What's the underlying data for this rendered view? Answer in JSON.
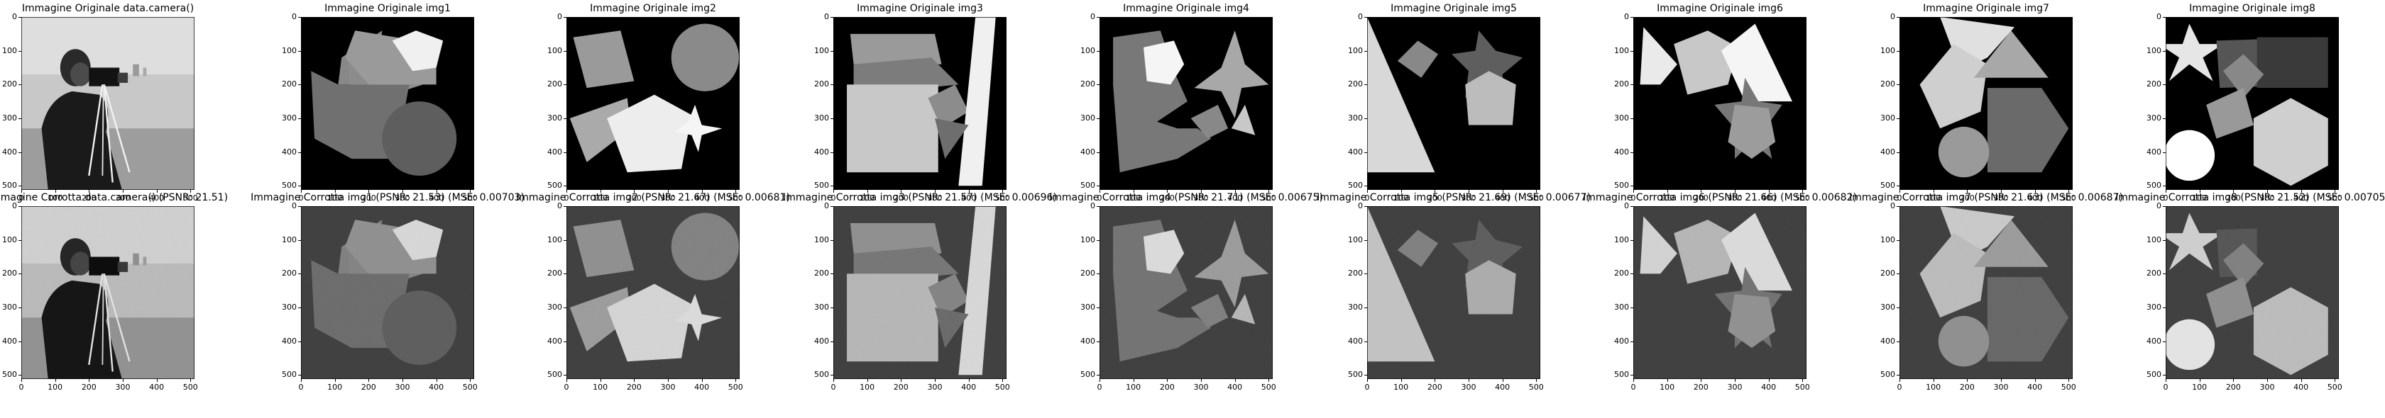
{
  "figure": {
    "rows": [
      {
        "titles": [
          "Immagine Originale data.camera()",
          "Immagine Originale img1",
          "Immagine Originale img2",
          "Immagine Originale img3",
          "Immagine Originale img4",
          "Immagine Originale img5",
          "Immagine Originale img6",
          "Immagine Originale img7",
          "Immagine Originale img8"
        ]
      },
      {
        "titles": [
          "Immagine Corrotta data.camera() (PSNR: 21.51)",
          "Immagine Corrotta img1 (PSNR: 21.53) (MSE: 0.00703)",
          "Immagine Corrotta img2 (PSNR: 21.67) (MSE: 0.00681)",
          "Immagine Corrotta img3 (PSNR: 21.57) (MSE: 0.00696)",
          "Immagine Corrotta img4 (PSNR: 21.71) (MSE: 0.00675)",
          "Immagine Corrotta img5 (PSNR: 21.69) (MSE: 0.00677)",
          "Immagine Corrotta img6 (PSNR: 21.66) (MSE: 0.00682)",
          "Immagine Corrotta img7 (PSNR: 21.63) (MSE: 0.00687)",
          "Immagine Corrotta img8 (PSNR: 21.52) (MSE: 0.00705)"
        ]
      }
    ]
  },
  "chart_data": [
    {
      "type": "heatmap",
      "title": "Immagine Originale data.camera()",
      "xlim": [
        0,
        512
      ],
      "ylim": [
        512,
        0
      ],
      "xticks": [
        0,
        100,
        200,
        300,
        400,
        500
      ],
      "yticks": [
        0,
        100,
        200,
        300,
        400,
        500
      ]
    },
    {
      "type": "heatmap",
      "title": "Immagine Originale img1",
      "xlim": [
        0,
        512
      ],
      "ylim": [
        512,
        0
      ],
      "xticks": [
        0,
        100,
        200,
        300,
        400,
        500
      ],
      "yticks": [
        0,
        100,
        200,
        300,
        400,
        500
      ]
    },
    {
      "type": "heatmap",
      "title": "Immagine Originale img2",
      "xlim": [
        0,
        512
      ],
      "ylim": [
        512,
        0
      ],
      "xticks": [
        0,
        100,
        200,
        300,
        400,
        500
      ],
      "yticks": [
        0,
        100,
        200,
        300,
        400,
        500
      ]
    },
    {
      "type": "heatmap",
      "title": "Immagine Originale img3",
      "xlim": [
        0,
        512
      ],
      "ylim": [
        512,
        0
      ],
      "xticks": [
        0,
        100,
        200,
        300,
        400,
        500
      ],
      "yticks": [
        0,
        100,
        200,
        300,
        400,
        500
      ]
    },
    {
      "type": "heatmap",
      "title": "Immagine Originale img4",
      "xlim": [
        0,
        512
      ],
      "ylim": [
        512,
        0
      ],
      "xticks": [
        0,
        100,
        200,
        300,
        400,
        500
      ],
      "yticks": [
        0,
        100,
        200,
        300,
        400,
        500
      ]
    },
    {
      "type": "heatmap",
      "title": "Immagine Originale img5",
      "xlim": [
        0,
        512
      ],
      "ylim": [
        512,
        0
      ],
      "xticks": [
        0,
        100,
        200,
        300,
        400,
        500
      ],
      "yticks": [
        0,
        100,
        200,
        300,
        400,
        500
      ]
    },
    {
      "type": "heatmap",
      "title": "Immagine Originale img6",
      "xlim": [
        0,
        512
      ],
      "ylim": [
        512,
        0
      ],
      "xticks": [
        0,
        100,
        200,
        300,
        400,
        500
      ],
      "yticks": [
        0,
        100,
        200,
        300,
        400,
        500
      ]
    },
    {
      "type": "heatmap",
      "title": "Immagine Originale img7",
      "xlim": [
        0,
        512
      ],
      "ylim": [
        512,
        0
      ],
      "xticks": [
        0,
        100,
        200,
        300,
        400,
        500
      ],
      "yticks": [
        0,
        100,
        200,
        300,
        400,
        500
      ]
    },
    {
      "type": "heatmap",
      "title": "Immagine Originale img8",
      "xlim": [
        0,
        512
      ],
      "ylim": [
        512,
        0
      ],
      "xticks": [
        0,
        100,
        200,
        300,
        400,
        500
      ],
      "yticks": [
        0,
        100,
        200,
        300,
        400,
        500
      ]
    },
    {
      "type": "heatmap",
      "title": "Immagine Corrotta data.camera() (PSNR: 21.51)",
      "xlim": [
        0,
        512
      ],
      "ylim": [
        512,
        0
      ],
      "xticks": [
        0,
        100,
        200,
        300,
        400,
        500
      ],
      "yticks": [
        0,
        100,
        200,
        300,
        400,
        500
      ]
    },
    {
      "type": "heatmap",
      "title": "Immagine Corrotta img1 (PSNR: 21.53) (MSE: 0.00703)",
      "xlim": [
        0,
        512
      ],
      "ylim": [
        512,
        0
      ],
      "xticks": [
        0,
        100,
        200,
        300,
        400,
        500
      ],
      "yticks": [
        0,
        100,
        200,
        300,
        400,
        500
      ]
    },
    {
      "type": "heatmap",
      "title": "Immagine Corrotta img2 (PSNR: 21.67) (MSE: 0.00681)",
      "xlim": [
        0,
        512
      ],
      "ylim": [
        512,
        0
      ],
      "xticks": [
        0,
        100,
        200,
        300,
        400,
        500
      ],
      "yticks": [
        0,
        100,
        200,
        300,
        400,
        500
      ]
    },
    {
      "type": "heatmap",
      "title": "Immagine Corrotta img3 (PSNR: 21.57) (MSE: 0.00696)",
      "xlim": [
        0,
        512
      ],
      "ylim": [
        512,
        0
      ],
      "xticks": [
        0,
        100,
        200,
        300,
        400,
        500
      ],
      "yticks": [
        0,
        100,
        200,
        300,
        400,
        500
      ]
    },
    {
      "type": "heatmap",
      "title": "Immagine Corrotta img4 (PSNR: 21.71) (MSE: 0.00675)",
      "xlim": [
        0,
        512
      ],
      "ylim": [
        512,
        0
      ],
      "xticks": [
        0,
        100,
        200,
        300,
        400,
        500
      ],
      "yticks": [
        0,
        100,
        200,
        300,
        400,
        500
      ]
    },
    {
      "type": "heatmap",
      "title": "Immagine Corrotta img5 (PSNR: 21.69) (MSE: 0.00677)",
      "xlim": [
        0,
        512
      ],
      "ylim": [
        512,
        0
      ],
      "xticks": [
        0,
        100,
        200,
        300,
        400,
        500
      ],
      "yticks": [
        0,
        100,
        200,
        300,
        400,
        500
      ]
    },
    {
      "type": "heatmap",
      "title": "Immagine Corrotta img6 (PSNR: 21.66) (MSE: 0.00682)",
      "xlim": [
        0,
        512
      ],
      "ylim": [
        512,
        0
      ],
      "xticks": [
        0,
        100,
        200,
        300,
        400,
        500
      ],
      "yticks": [
        0,
        100,
        200,
        300,
        400,
        500
      ]
    },
    {
      "type": "heatmap",
      "title": "Immagine Corrotta img7 (PSNR: 21.63) (MSE: 0.00687)",
      "xlim": [
        0,
        512
      ],
      "ylim": [
        512,
        0
      ],
      "xticks": [
        0,
        100,
        200,
        300,
        400,
        500
      ],
      "yticks": [
        0,
        100,
        200,
        300,
        400,
        500
      ]
    },
    {
      "type": "heatmap",
      "title": "Immagine Corrotta img8 (PSNR: 21.52) (MSE: 0.00705)",
      "xlim": [
        0,
        512
      ],
      "ylim": [
        512,
        0
      ],
      "xticks": [
        0,
        100,
        200,
        300,
        400,
        500
      ],
      "yticks": [
        0,
        100,
        200,
        300,
        400,
        500
      ]
    }
  ]
}
